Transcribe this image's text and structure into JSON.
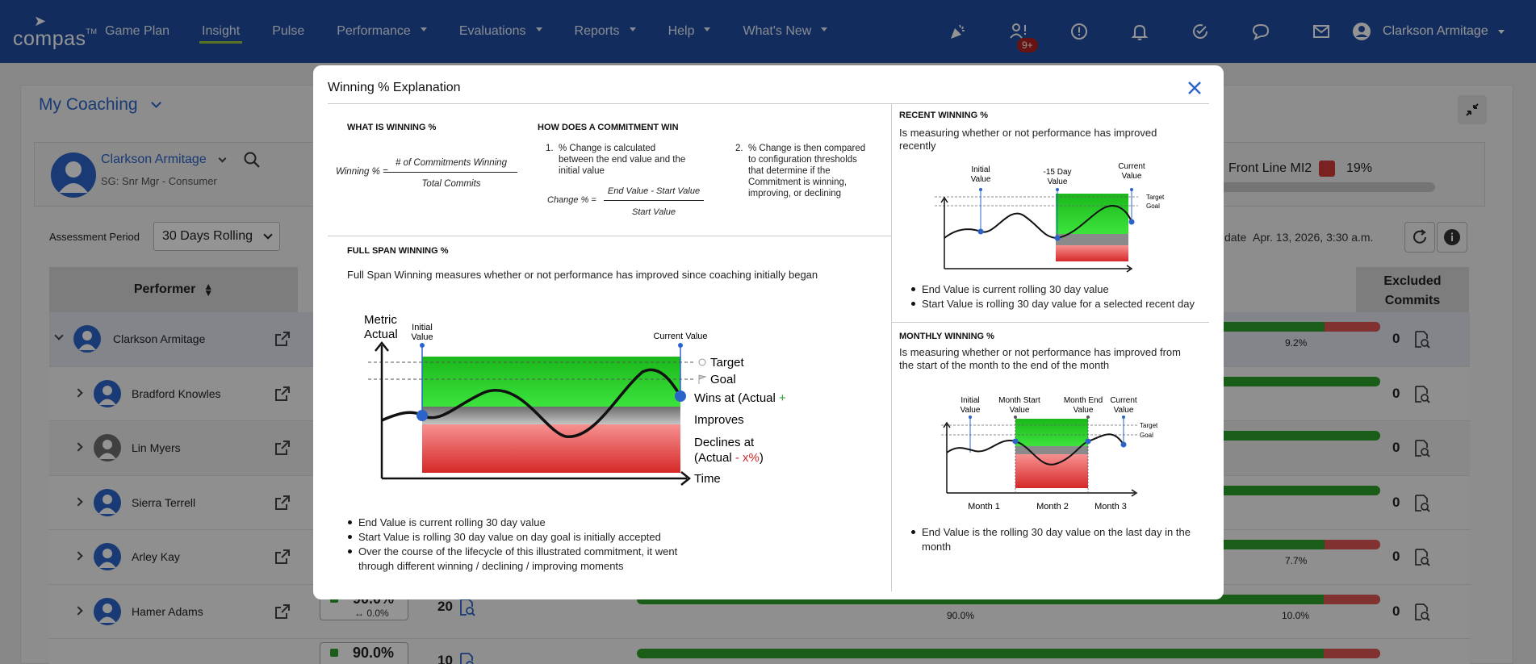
{
  "nav": {
    "logo_text": "compas",
    "tm": "TM",
    "links": [
      {
        "label": "Game Plan",
        "caret": false,
        "active": false
      },
      {
        "label": "Insight",
        "caret": false,
        "active": true
      },
      {
        "label": "Pulse",
        "caret": false,
        "active": false
      },
      {
        "label": "Performance",
        "caret": true,
        "active": false
      },
      {
        "label": "Evaluations",
        "caret": true,
        "active": false
      },
      {
        "label": "Reports",
        "caret": true,
        "active": false
      },
      {
        "label": "Help",
        "caret": true,
        "active": false
      },
      {
        "label": "What's New",
        "caret": true,
        "active": false
      }
    ],
    "icons": [
      "party-popper-icon",
      "user-alert-icon",
      "alert-circle-icon",
      "bell-icon",
      "check-task-icon",
      "chat-icon",
      "mail-icon"
    ],
    "badge": "9+",
    "user": "Clarkson Armitage"
  },
  "page": {
    "title": "My Coaching",
    "person": {
      "name": "Clarkson Armitage",
      "sub": "SG: Snr Mgr - Consumer"
    },
    "front_line": {
      "label": "Front Line MI2",
      "pct": "19%"
    },
    "assessment": {
      "label": "Assessment Period",
      "value": "30 Days Rolling"
    },
    "update": {
      "label": "date",
      "value": "Apr. 13, 2026, 3:30 a.m."
    },
    "table": {
      "performer_header": "Performer",
      "excluded_header_1": "Excluded",
      "excluded_header_2": "Commits",
      "rows": [
        {
          "name": "Clarkson Armitage",
          "excluded": "0",
          "red": "9.2%",
          "sel": true
        },
        {
          "name": "Bradford Knowles",
          "excluded": "0",
          "red": ""
        },
        {
          "name": "Lin Myers",
          "excluded": "0",
          "red": "",
          "gray": true
        },
        {
          "name": "Sierra Terrell",
          "excluded": "0",
          "red": ""
        },
        {
          "name": "Arley Kay",
          "excluded": "0",
          "red": "7.7%"
        },
        {
          "name": "Hamer Adams",
          "excluded": "0",
          "green_lbl": "90.0%",
          "red": "10.0%",
          "card_pct": "90.0%",
          "card_delta": "0.0%",
          "count": "20"
        },
        {
          "name": "",
          "excluded": "",
          "card_pct": "90.0%",
          "count": "10"
        }
      ]
    }
  },
  "modal": {
    "title": "Winning % Explanation",
    "what": {
      "heading": "WHAT IS WINNING %",
      "lhs": "Winning % =",
      "num": "# of Commitments Winning",
      "den": "Total Commits"
    },
    "how": {
      "heading": "HOW DOES A COMMITMENT WIN",
      "step1_num": "1.",
      "step1": "% Change is calculated between the end value and the initial value",
      "change_lhs": "Change % =",
      "change_num": "End Value - Start Value",
      "change_den": "Start Value",
      "step2_num": "2.",
      "step2": "% Change is then compared to configuration thresholds that determine if the Commitment is winning, improving, or declining"
    },
    "full": {
      "heading": "FULL SPAN WINNING %",
      "desc": "Full Span Winning measures whether or not performance has improved since coaching initially began",
      "metric_axis": "Metric",
      "metric_axis2": "Actual",
      "time_axis": "Time",
      "initial_1": "Initial",
      "initial_2": "Value",
      "current": "Current Value",
      "target": "Target",
      "goal": "Goal",
      "wins_pre": "Wins at (Actual ",
      "wins_mid": "+ x%",
      "wins_post": ")",
      "improves": "Improves",
      "declines_1": "Declines at",
      "declines_2_pre": "(Actual ",
      "declines_2_mid": "- x%",
      "declines_2_post": ")",
      "bullets": [
        "End Value is current rolling 30 day value",
        "Start Value is rolling 30 day value on day goal is initially accepted",
        "Over the course of the lifecycle of this illustrated commitment, it went through different winning / declining / improving moments"
      ]
    },
    "recent": {
      "heading": "RECENT WINNING %",
      "desc": "Is measuring whether or not performance has improved recently",
      "initial_1": "Initial",
      "initial_2": "Value",
      "mid_1": "-15 Day",
      "mid_2": "Value",
      "current_1": "Current",
      "current_2": "Value",
      "target": "Target",
      "goal": "Goal",
      "bullets": [
        "End Value is current rolling 30 day value",
        "Start Value is rolling 30 day value for a selected recent day"
      ]
    },
    "monthly": {
      "heading": "MONTHLY WINNING %",
      "desc": "Is measuring whether or not performance has improved from the start of the month to the end of the month",
      "initial_1": "Initial",
      "initial_2": "Value",
      "mstart_1": "Month Start",
      "mstart_2": "Value",
      "mend_1": "Month End",
      "mend_2": "Value",
      "current_1": "Current",
      "current_2": "Value",
      "target": "Target",
      "goal": "Goal",
      "months": [
        "Month 1",
        "Month 2",
        "Month 3"
      ],
      "bullets": [
        "End Value is the rolling 30 day value on the last day in the month"
      ]
    }
  }
}
